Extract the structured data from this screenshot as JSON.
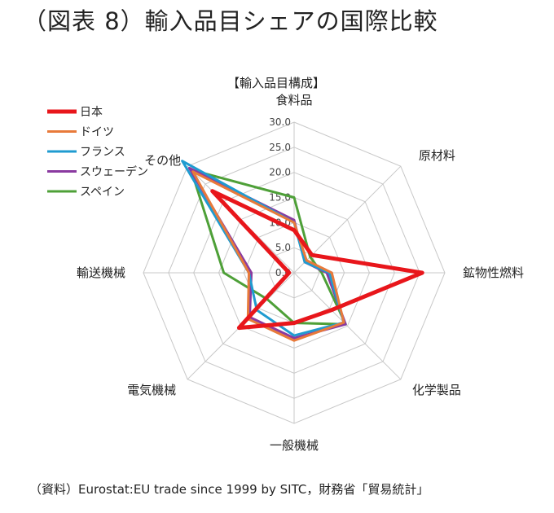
{
  "title": "（図表 8）輸入品目シェアの国際比較",
  "source": "（資料）Eurostat:EU trade since 1999 by SITC，財務省「貿易統計」",
  "colors": {
    "日本": "#e8161b",
    "ドイツ": "#e87a3a",
    "フランス": "#1f9bd0",
    "スウェーデン": "#8a3aa0",
    "スペイン": "#4ea038",
    "grid": "#c8c8c8"
  },
  "chart_data": {
    "type": "radar",
    "title": "【輸入品目構成】",
    "axes": [
      "食料品",
      "原材料",
      "鉱物性燃料",
      "化学製品",
      "一般機械",
      "電気機械",
      "輸送機械",
      "その他"
    ],
    "ticks": [
      "0.0",
      "5.0",
      "10.0",
      "15.0",
      "20.0",
      "25.0",
      "30.0"
    ],
    "rlim": [
      0,
      30
    ],
    "grid": true,
    "legend_position": "top-left",
    "series": [
      {
        "name": "日本",
        "values": [
          8.5,
          5.0,
          25.5,
          10.5,
          10.0,
          15.5,
          1.0,
          23.0
        ]
      },
      {
        "name": "ドイツ",
        "values": [
          10.0,
          3.5,
          7.5,
          14.0,
          13.5,
          13.0,
          9.0,
          28.5
        ]
      },
      {
        "name": "フランス",
        "values": [
          10.0,
          3.0,
          7.0,
          14.0,
          12.5,
          10.5,
          9.0,
          31.5
        ]
      },
      {
        "name": "スウェーデン",
        "values": [
          10.5,
          3.0,
          6.5,
          14.5,
          13.0,
          12.5,
          8.5,
          29.5
        ]
      },
      {
        "name": "スペイン",
        "values": [
          15.0,
          4.5,
          5.5,
          14.5,
          10.0,
          7.5,
          14.0,
          29.0
        ]
      }
    ]
  }
}
